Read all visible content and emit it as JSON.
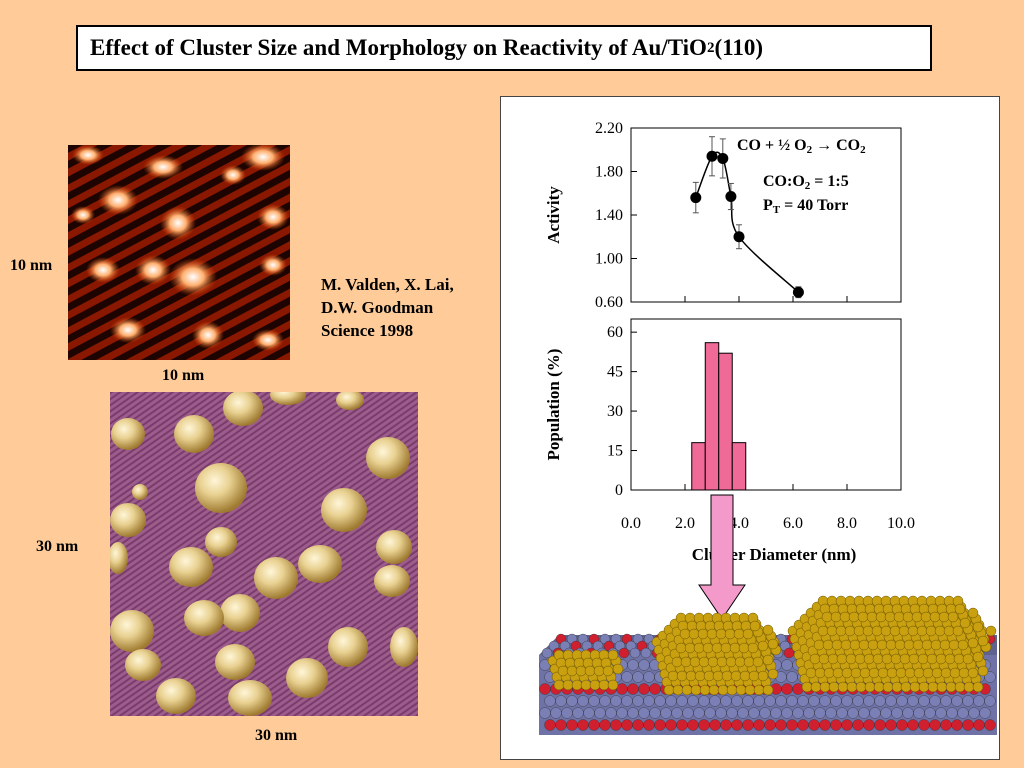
{
  "title": {
    "main": "Effect of Cluster Size and Morphology on Reactivity of Au/TiO",
    "subscript": "2",
    "suffix": "(110)"
  },
  "stm_top": {
    "side_label": "10 nm",
    "bottom_label": "10 nm"
  },
  "stm_bottom": {
    "side_label": "30 nm",
    "bottom_label": "30 nm"
  },
  "citation": {
    "line1": "M. Valden, X. Lai,",
    "line2": "D.W. Goodman",
    "line3": "Science 1998"
  },
  "annotations": {
    "reaction_lhs": "CO + ½ O",
    "reaction_sub1": "2",
    "reaction_arrow": "→",
    "reaction_rhs": "CO",
    "reaction_sub2": "2",
    "ratio_main": "CO:O",
    "ratio_sub": "2",
    "ratio_tail": " = 1:5",
    "pressure_main": "P",
    "pressure_sub": "T",
    "pressure_tail": " = 40 Torr"
  },
  "colors": {
    "background": "#FFCC99",
    "histogram_fill": "#F06A98",
    "arrow_fill": "#F39ACB",
    "gold_atom": "#C8A010",
    "ti_atom": "#7A7FB5",
    "o_atom": "#D02030"
  },
  "chart_data": [
    {
      "type": "line",
      "ylabel": "Activity",
      "ylim": [
        0.6,
        2.2
      ],
      "yticks": [
        "0.60",
        "1.00",
        "1.40",
        "1.80",
        "2.20"
      ],
      "xlim": [
        0,
        10
      ],
      "grid": false,
      "series": [
        {
          "x": [
            2.4,
            3.0,
            3.4,
            3.7,
            4.0,
            6.2
          ],
          "y": [
            1.56,
            1.94,
            1.92,
            1.57,
            1.2,
            0.69
          ],
          "yerr": [
            0.14,
            0.18,
            0.18,
            0.12,
            0.11,
            0.05
          ]
        }
      ]
    },
    {
      "type": "bar",
      "ylabel": "Population (%)",
      "xlabel": "Cluster Diameter (nm)",
      "ylim": [
        0,
        65
      ],
      "yticks": [
        "0",
        "15",
        "30",
        "45",
        "60"
      ],
      "xlim": [
        0,
        10
      ],
      "xticks": [
        "0.0",
        "2.0",
        "4.0",
        "6.0",
        "8.0",
        "10.0"
      ],
      "grid": false,
      "bins": [
        {
          "from": 2.25,
          "to": 2.75,
          "value": 18
        },
        {
          "from": 2.75,
          "to": 3.25,
          "value": 56
        },
        {
          "from": 3.25,
          "to": 3.75,
          "value": 52
        },
        {
          "from": 3.75,
          "to": 4.25,
          "value": 18
        }
      ]
    }
  ]
}
